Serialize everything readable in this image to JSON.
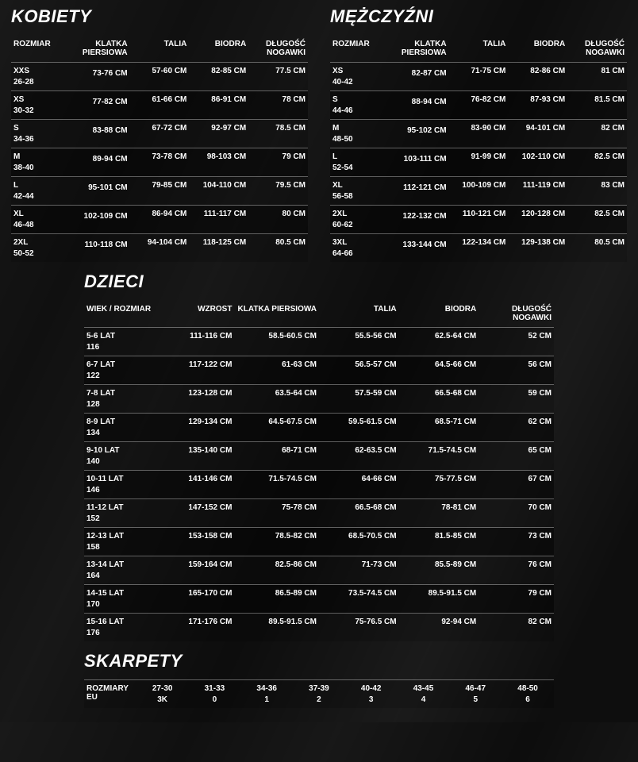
{
  "women": {
    "title": "KOBIETY",
    "headers": [
      "ROZMIAR",
      "KLATKA PIERSIOWA",
      "TALIA",
      "BIODRA",
      "DŁUGOŚĆ NOGAWKI"
    ],
    "rows": [
      {
        "size": "XXS",
        "sub": "26-28",
        "chest": "73-76 CM",
        "waist": "57-60 CM",
        "hips": "82-85 CM",
        "inseam": "77.5 CM"
      },
      {
        "size": "XS",
        "sub": "30-32",
        "chest": "77-82 CM",
        "waist": "61-66 CM",
        "hips": "86-91 CM",
        "inseam": "78 CM"
      },
      {
        "size": "S",
        "sub": "34-36",
        "chest": "83-88 CM",
        "waist": "67-72 CM",
        "hips": "92-97 CM",
        "inseam": "78.5 CM"
      },
      {
        "size": "M",
        "sub": "38-40",
        "chest": "89-94 CM",
        "waist": "73-78 CM",
        "hips": "98-103 CM",
        "inseam": "79 CM"
      },
      {
        "size": "L",
        "sub": "42-44",
        "chest": "95-101 CM",
        "waist": "79-85 CM",
        "hips": "104-110 CM",
        "inseam": "79.5 CM"
      },
      {
        "size": "XL",
        "sub": "46-48",
        "chest": "102-109 CM",
        "waist": "86-94 CM",
        "hips": "111-117 CM",
        "inseam": "80 CM"
      },
      {
        "size": "2XL",
        "sub": "50-52",
        "chest": "110-118 CM",
        "waist": "94-104 CM",
        "hips": "118-125 CM",
        "inseam": "80.5 CM"
      }
    ]
  },
  "men": {
    "title": "MĘŻCZYŹNI",
    "headers": [
      "ROZMIAR",
      "KLATKA PIERSIOWA",
      "TALIA",
      "BIODRA",
      "DŁUGOŚĆ NOGAWKI"
    ],
    "rows": [
      {
        "size": "XS",
        "sub": "40-42",
        "chest": "82-87 CM",
        "waist": "71-75 CM",
        "hips": "82-86 CM",
        "inseam": "81 CM"
      },
      {
        "size": "S",
        "sub": "44-46",
        "chest": "88-94 CM",
        "waist": "76-82 CM",
        "hips": "87-93 CM",
        "inseam": "81.5 CM"
      },
      {
        "size": "M",
        "sub": "48-50",
        "chest": "95-102 CM",
        "waist": "83-90 CM",
        "hips": "94-101 CM",
        "inseam": "82 CM"
      },
      {
        "size": "L",
        "sub": "52-54",
        "chest": "103-111 CM",
        "waist": "91-99 CM",
        "hips": "102-110 CM",
        "inseam": "82.5 CM"
      },
      {
        "size": "XL",
        "sub": "56-58",
        "chest": "112-121 CM",
        "waist": "100-109 CM",
        "hips": "111-119 CM",
        "inseam": "83 CM"
      },
      {
        "size": "2XL",
        "sub": "60-62",
        "chest": "122-132 CM",
        "waist": "110-121 CM",
        "hips": "120-128 CM",
        "inseam": "82.5 CM"
      },
      {
        "size": "3XL",
        "sub": "64-66",
        "chest": "133-144 CM",
        "waist": "122-134 CM",
        "hips": "129-138 CM",
        "inseam": "80.5 CM"
      }
    ]
  },
  "kids": {
    "title": "DZIECI",
    "headers": [
      "WIEK / ROZMIAR",
      "WZROST",
      "KLATKA PIERSIOWA",
      "TALIA",
      "BIODRA",
      "DŁUGOŚĆ NOGAWKI"
    ],
    "rows": [
      {
        "age": "5-6 LAT",
        "sub": "116",
        "h": "111-116 CM",
        "chest": "58.5-60.5 CM",
        "waist": "55.5-56 CM",
        "hips": "62.5-64 CM",
        "inseam": "52 CM"
      },
      {
        "age": "6-7 LAT",
        "sub": "122",
        "h": "117-122 CM",
        "chest": "61-63 CM",
        "waist": "56.5-57 CM",
        "hips": "64.5-66 CM",
        "inseam": "56 CM"
      },
      {
        "age": "7-8 LAT",
        "sub": "128",
        "h": "123-128 CM",
        "chest": "63.5-64 CM",
        "waist": "57.5-59 CM",
        "hips": "66.5-68 CM",
        "inseam": "59 CM"
      },
      {
        "age": "8-9 LAT",
        "sub": "134",
        "h": "129-134 CM",
        "chest": "64.5-67.5 CM",
        "waist": "59.5-61.5 CM",
        "hips": "68.5-71 CM",
        "inseam": "62 CM"
      },
      {
        "age": "9-10 LAT",
        "sub": "140",
        "h": "135-140 CM",
        "chest": "68-71 CM",
        "waist": "62-63.5 CM",
        "hips": "71.5-74.5 CM",
        "inseam": "65 CM"
      },
      {
        "age": "10-11 LAT",
        "sub": "146",
        "h": "141-146 CM",
        "chest": "71.5-74.5 CM",
        "waist": "64-66 CM",
        "hips": "75-77.5 CM",
        "inseam": "67 CM"
      },
      {
        "age": "11-12 LAT",
        "sub": "152",
        "h": "147-152 CM",
        "chest": "75-78 CM",
        "waist": "66.5-68 CM",
        "hips": "78-81 CM",
        "inseam": "70 CM"
      },
      {
        "age": "12-13 LAT",
        "sub": "158",
        "h": "153-158 CM",
        "chest": "78.5-82 CM",
        "waist": "68.5-70.5 CM",
        "hips": "81.5-85 CM",
        "inseam": "73 CM"
      },
      {
        "age": "13-14 LAT",
        "sub": "164",
        "h": "159-164 CM",
        "chest": "82.5-86 CM",
        "waist": "71-73 CM",
        "hips": "85.5-89 CM",
        "inseam": "76 CM"
      },
      {
        "age": "14-15 LAT",
        "sub": "170",
        "h": "165-170 CM",
        "chest": "86.5-89 CM",
        "waist": "73.5-74.5 CM",
        "hips": "89.5-91.5 CM",
        "inseam": "79 CM"
      },
      {
        "age": "15-16 LAT",
        "sub": "176",
        "h": "171-176 CM",
        "chest": "89.5-91.5 CM",
        "waist": "75-76.5 CM",
        "hips": "92-94 CM",
        "inseam": "82 CM"
      }
    ]
  },
  "socks": {
    "title": "SKARPETY",
    "rowLabel": "ROZMIARY EU",
    "eu": [
      "27-30",
      "31-33",
      "34-36",
      "37-39",
      "40-42",
      "43-45",
      "46-47",
      "48-50"
    ],
    "alt": [
      "3K",
      "0",
      "1",
      "2",
      "3",
      "4",
      "5",
      "6"
    ]
  }
}
